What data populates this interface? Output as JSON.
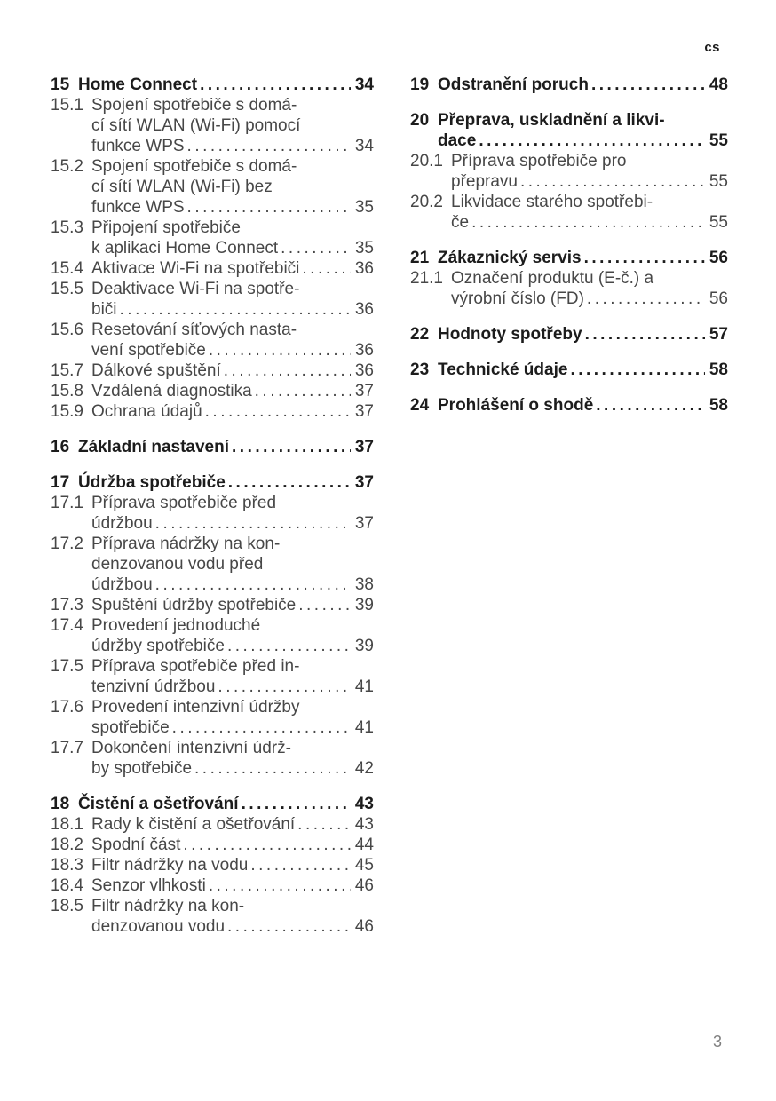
{
  "header": {
    "language_code": "cs"
  },
  "footer": {
    "page_number": "3"
  },
  "colors": {
    "heading_text": "#1c1c1c",
    "body_text": "#474747",
    "footer_page_number": "#7f7f7f"
  },
  "toc": {
    "left_column": [
      {
        "num": "15",
        "bold": true,
        "lines": [
          "Home Connect"
        ],
        "page": "34"
      },
      {
        "num": "15.1",
        "bold": false,
        "lines": [
          "Spojení spotřebiče s domá-",
          "cí sítí WLAN (Wi-Fi) pomocí",
          "funkce WPS"
        ],
        "page": "34"
      },
      {
        "num": "15.2",
        "bold": false,
        "lines": [
          "Spojení spotřebiče s domá-",
          "cí sítí WLAN (Wi-Fi) bez",
          "funkce WPS"
        ],
        "page": "35"
      },
      {
        "num": "15.3",
        "bold": false,
        "lines": [
          "Připojení spotřebiče",
          "k aplikaci Home Connect"
        ],
        "page": "35"
      },
      {
        "num": "15.4",
        "bold": false,
        "lines": [
          "Aktivace Wi-Fi na spotřebiči"
        ],
        "page": "36"
      },
      {
        "num": "15.5",
        "bold": false,
        "lines": [
          "Deaktivace Wi-Fi na spotře-",
          "biči"
        ],
        "page": "36"
      },
      {
        "num": "15.6",
        "bold": false,
        "lines": [
          "Resetování síťových nasta-",
          "vení spotřebiče"
        ],
        "page": "36"
      },
      {
        "num": "15.7",
        "bold": false,
        "lines": [
          "Dálkové spuštění"
        ],
        "page": "36"
      },
      {
        "num": "15.8",
        "bold": false,
        "lines": [
          "Vzdálená diagnostika"
        ],
        "page": "37"
      },
      {
        "num": "15.9",
        "bold": false,
        "lines": [
          "Ochrana údajů"
        ],
        "page": "37"
      },
      {
        "num": "16",
        "bold": true,
        "lines": [
          "Základní nastavení"
        ],
        "page": "37"
      },
      {
        "num": "17",
        "bold": true,
        "lines": [
          "Údržba spotřebiče"
        ],
        "page": "37"
      },
      {
        "num": "17.1",
        "bold": false,
        "lines": [
          "Příprava spotřebiče před",
          "údržbou"
        ],
        "page": "37"
      },
      {
        "num": "17.2",
        "bold": false,
        "lines": [
          "Příprava nádržky na kon-",
          "denzovanou vodu před",
          "údržbou"
        ],
        "page": "38"
      },
      {
        "num": "17.3",
        "bold": false,
        "lines": [
          "Spuštění údržby spotřebiče"
        ],
        "page": "39"
      },
      {
        "num": "17.4",
        "bold": false,
        "lines": [
          "Provedení jednoduché",
          "údržby spotřebiče"
        ],
        "page": "39"
      },
      {
        "num": "17.5",
        "bold": false,
        "lines": [
          "Příprava spotřebiče před in-",
          "tenzivní údržbou"
        ],
        "page": "41"
      },
      {
        "num": "17.6",
        "bold": false,
        "lines": [
          "Provedení intenzivní údržby",
          "spotřebiče"
        ],
        "page": "41"
      },
      {
        "num": "17.7",
        "bold": false,
        "lines": [
          "Dokončení intenzivní údrž-",
          "by spotřebiče"
        ],
        "page": "42"
      },
      {
        "num": "18",
        "bold": true,
        "lines": [
          "Čistění a ošetřování"
        ],
        "page": "43"
      },
      {
        "num": "18.1",
        "bold": false,
        "lines": [
          "Rady k čistění a ošetřování"
        ],
        "page": "43"
      },
      {
        "num": "18.2",
        "bold": false,
        "lines": [
          "Spodní část"
        ],
        "page": "44"
      },
      {
        "num": "18.3",
        "bold": false,
        "lines": [
          "Filtr nádržky na vodu"
        ],
        "page": "45"
      },
      {
        "num": "18.4",
        "bold": false,
        "lines": [
          "Senzor vlhkosti"
        ],
        "page": "46"
      },
      {
        "num": "18.5",
        "bold": false,
        "lines": [
          "Filtr nádržky na kon-",
          "denzovanou vodu"
        ],
        "page": "46"
      }
    ],
    "right_column": [
      {
        "num": "19",
        "bold": true,
        "lines": [
          "Odstranění poruch"
        ],
        "page": "48"
      },
      {
        "num": "20",
        "bold": true,
        "lines": [
          "Přeprava, uskladnění a likvi-",
          "dace"
        ],
        "page": "55"
      },
      {
        "num": "20.1",
        "bold": false,
        "lines": [
          "Příprava spotřebiče pro",
          "přepravu"
        ],
        "page": "55"
      },
      {
        "num": "20.2",
        "bold": false,
        "lines": [
          "Likvidace starého spotřebi-",
          "če"
        ],
        "page": "55"
      },
      {
        "num": "21",
        "bold": true,
        "lines": [
          "Zákaznický servis"
        ],
        "page": "56"
      },
      {
        "num": "21.1",
        "bold": false,
        "lines": [
          "Označení produktu (E-č.) a",
          "výrobní číslo (FD)"
        ],
        "page": "56"
      },
      {
        "num": "22",
        "bold": true,
        "lines": [
          "Hodnoty spotřeby"
        ],
        "page": "57"
      },
      {
        "num": "23",
        "bold": true,
        "lines": [
          "Technické údaje"
        ],
        "page": "58"
      },
      {
        "num": "24",
        "bold": true,
        "lines": [
          "Prohlášení o shodě"
        ],
        "page": "58"
      }
    ]
  }
}
